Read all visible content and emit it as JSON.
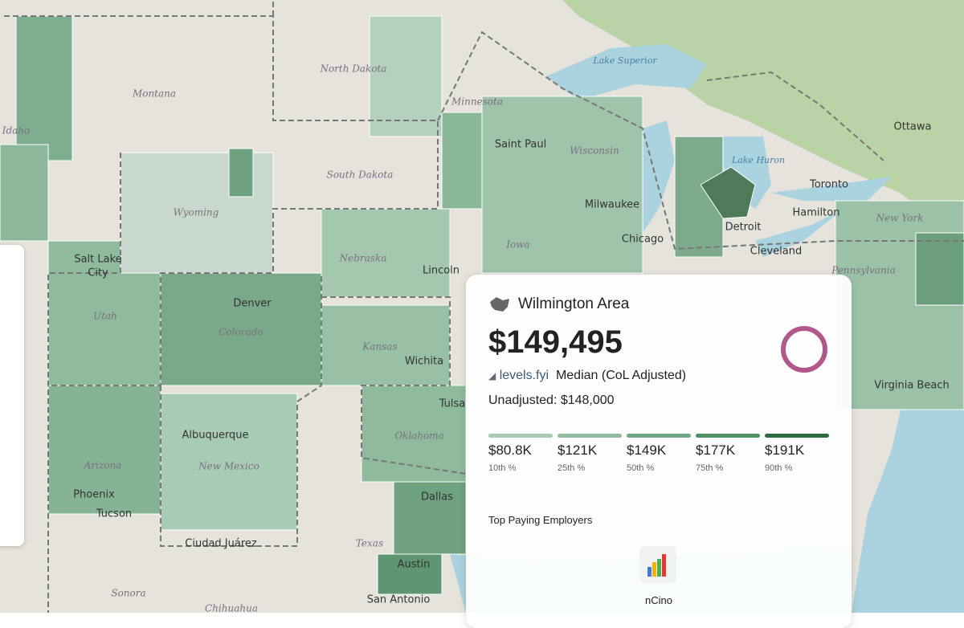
{
  "map_labels": [
    "North Dakota",
    "Montana",
    "Idaho",
    "Wyoming",
    "South Dakota",
    "Minnesota",
    "Saint Paul",
    "Wisconsin",
    "Lake Superior",
    "Ottawa",
    "Toronto",
    "Hamilton",
    "Lake Huron",
    "Milwaukee",
    "Chicago",
    "Detroit",
    "Cleveland",
    "Salt Lake",
    "City",
    "Utah",
    "Denver",
    "Colorado",
    "Nebraska",
    "Lincoln",
    "Iowa",
    "Kansas",
    "Wichita",
    "Tulsa",
    "Oklahoma",
    "Albuquerque",
    "Arizona",
    "New Mexico",
    "Phoenix",
    "Tucson",
    "Ciudad Juárez",
    "Texas",
    "Dallas",
    "Austin",
    "San Antonio",
    "Sonora",
    "Chihuahua",
    "Virginia Beach",
    "New York",
    "Pennsylvania"
  ],
  "panel": {
    "area": "Wilmington Area",
    "median": "$149,495",
    "source": "levels.fyi",
    "median_label": "Median (CoL Adjusted)",
    "unadjusted": "Unadjusted: $148,000",
    "percentiles": [
      {
        "value": "$80.8K",
        "label": "10th %",
        "color": "#a9cbb5"
      },
      {
        "value": "$121K",
        "label": "25th %",
        "color": "#8fbc9f"
      },
      {
        "value": "$149K",
        "label": "50th %",
        "color": "#6ea882"
      },
      {
        "value": "$177K",
        "label": "75th %",
        "color": "#4f8f63"
      },
      {
        "value": "$191K",
        "label": "90th %",
        "color": "#2f6b40"
      }
    ],
    "employers_title": "Top Paying Employers",
    "employers": [
      "nCino"
    ]
  }
}
